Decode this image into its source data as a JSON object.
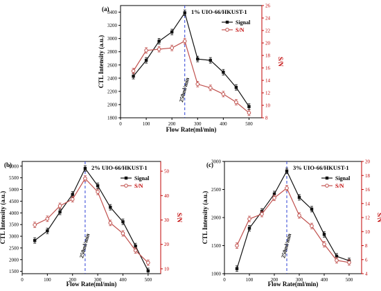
{
  "colors": {
    "signal": "#111111",
    "sn": "#c0504d",
    "ref_line": "#2b3fd6",
    "axis_right": "#c00000"
  },
  "chart_data": [
    {
      "type": "line",
      "panel_label": "(a)",
      "title": "1% UIO-66/HKUST-1",
      "xlabel": "Flow Rate(ml/min)",
      "ylabel": "CTL Intensity (a.u.)",
      "y2label": "S/N",
      "x": [
        50,
        100,
        150,
        200,
        250,
        300,
        350,
        400,
        450,
        500
      ],
      "xlim": [
        0,
        550
      ],
      "xticks": [
        0,
        100,
        200,
        300,
        400,
        500
      ],
      "ylim": [
        1800,
        3500
      ],
      "yticks": [
        1800,
        2000,
        2200,
        2400,
        2600,
        2800,
        3000,
        3200,
        3400
      ],
      "y2lim": [
        8,
        26
      ],
      "y2ticks": [
        8,
        10,
        12,
        14,
        16,
        18,
        20,
        22,
        24,
        26
      ],
      "vline_x": 250,
      "vline_label": "250ml/min",
      "legend_position": "top-right",
      "grid": false,
      "series": [
        {
          "name": "Signal",
          "axis": "left",
          "values": [
            2430,
            2670,
            2960,
            3100,
            3390,
            2690,
            2670,
            2490,
            2260,
            1970
          ]
        },
        {
          "name": "S/N",
          "axis": "right",
          "values": [
            15.5,
            18.8,
            19.0,
            19.2,
            20.3,
            13.4,
            12.8,
            11.8,
            10.5,
            8.8
          ]
        }
      ]
    },
    {
      "type": "line",
      "panel_label": "(b)",
      "title": "2% UIO-66/HKUST-1",
      "xlabel": "Flow Rate(ml/min)",
      "ylabel": "CTL Intensity (a.u.)",
      "y2label": "S/N",
      "x": [
        50,
        100,
        150,
        200,
        250,
        300,
        350,
        400,
        450,
        500
      ],
      "xlim": [
        0,
        550
      ],
      "xticks": [
        0,
        100,
        200,
        300,
        400,
        500
      ],
      "ylim": [
        1400,
        6200
      ],
      "yticks": [
        1500,
        2000,
        2500,
        3000,
        3500,
        4000,
        4500,
        5000,
        5500,
        6000
      ],
      "y2lim": [
        8,
        54
      ],
      "y2ticks": [
        10,
        20,
        30,
        40,
        50
      ],
      "vline_x": 250,
      "vline_label": "250ml/min",
      "legend_position": "top-right",
      "grid": false,
      "series": [
        {
          "name": "Signal",
          "axis": "left",
          "values": [
            2820,
            3230,
            4040,
            4790,
            5900,
            5160,
            4240,
            3620,
            2580,
            1520
          ]
        },
        {
          "name": "S/N",
          "axis": "right",
          "values": [
            28,
            30.5,
            35.8,
            38.5,
            47.0,
            41.5,
            28.8,
            24.5,
            17.5,
            12.5
          ]
        }
      ]
    },
    {
      "type": "line",
      "panel_label": "(c)",
      "title": "3% UIO-66/HKUST-1",
      "xlabel": "Flow Rate(ml/min)",
      "ylabel": "CTL Intensity (a.u.)",
      "y2label": "S/N",
      "x": [
        50,
        100,
        150,
        200,
        250,
        300,
        350,
        400,
        450,
        500
      ],
      "xlim": [
        0,
        550
      ],
      "xticks": [
        0,
        100,
        200,
        300,
        400,
        500
      ],
      "ylim": [
        1000,
        3000
      ],
      "yticks": [
        1000,
        1500,
        2000,
        2500,
        3000
      ],
      "y2lim": [
        4,
        20
      ],
      "y2ticks": [
        4,
        6,
        8,
        10,
        12,
        14,
        16,
        18,
        20
      ],
      "vline_x": 250,
      "vline_label": "250ml/min",
      "legend_position": "top-right",
      "grid": false,
      "series": [
        {
          "name": "Signal",
          "axis": "left",
          "values": [
            1090,
            1810,
            2110,
            2420,
            2830,
            2360,
            2150,
            1700,
            1310,
            1230
          ]
        },
        {
          "name": "S/N",
          "axis": "right",
          "values": [
            8.0,
            11.8,
            12.5,
            14.8,
            16.2,
            12.3,
            10.8,
            8.2,
            5.9,
            5.6
          ]
        }
      ]
    }
  ]
}
